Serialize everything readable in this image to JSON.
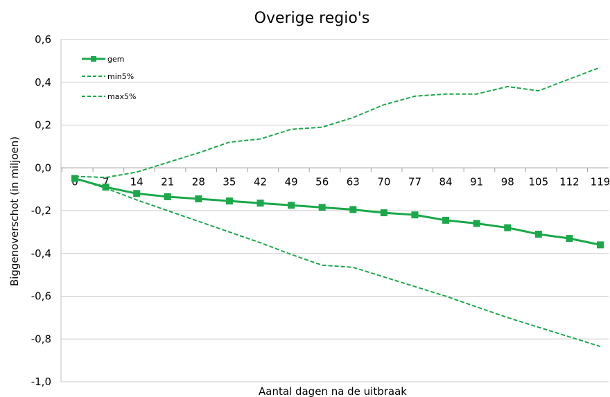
{
  "chart_data": {
    "type": "line",
    "title": "Overige regio's",
    "xlabel": "Aantal dagen na de uitbraak",
    "ylabel": "Biggenoverschot (in miljoen)",
    "categories": [
      "0",
      "7",
      "14",
      "21",
      "28",
      "35",
      "42",
      "49",
      "56",
      "63",
      "70",
      "77",
      "84",
      "91",
      "98",
      "105",
      "112",
      "119"
    ],
    "ylim": [
      -1.0,
      0.6
    ],
    "yticks": [
      "-1,0",
      "-0,8",
      "-0,6",
      "-0,4",
      "-0,2",
      "0,0",
      "0,2",
      "0,4",
      "0,6"
    ],
    "grid": true,
    "legend_position": "top-left",
    "series": [
      {
        "name": "gem",
        "style": "solid-square-markers",
        "color": "#1aa84a",
        "values": [
          -0.05,
          -0.09,
          -0.12,
          -0.135,
          -0.145,
          -0.155,
          -0.165,
          -0.175,
          -0.185,
          -0.195,
          -0.21,
          -0.22,
          -0.245,
          -0.26,
          -0.28,
          -0.31,
          -0.33,
          -0.36
        ]
      },
      {
        "name": "min5%",
        "style": "dashed",
        "color": "#1aa84a",
        "values": [
          -0.04,
          -0.045,
          -0.02,
          0.025,
          0.07,
          0.12,
          0.135,
          0.18,
          0.19,
          0.235,
          0.295,
          0.335,
          0.345,
          0.345,
          0.38,
          0.36,
          0.415,
          0.47
        ]
      },
      {
        "name": "max5%",
        "style": "dashed",
        "color": "#1aa84a",
        "values": [
          -0.05,
          -0.095,
          -0.15,
          -0.2,
          -0.25,
          -0.3,
          -0.35,
          -0.405,
          -0.455,
          -0.465,
          -0.51,
          -0.555,
          -0.6,
          -0.65,
          -0.7,
          -0.745,
          -0.79,
          -0.835
        ]
      }
    ]
  }
}
